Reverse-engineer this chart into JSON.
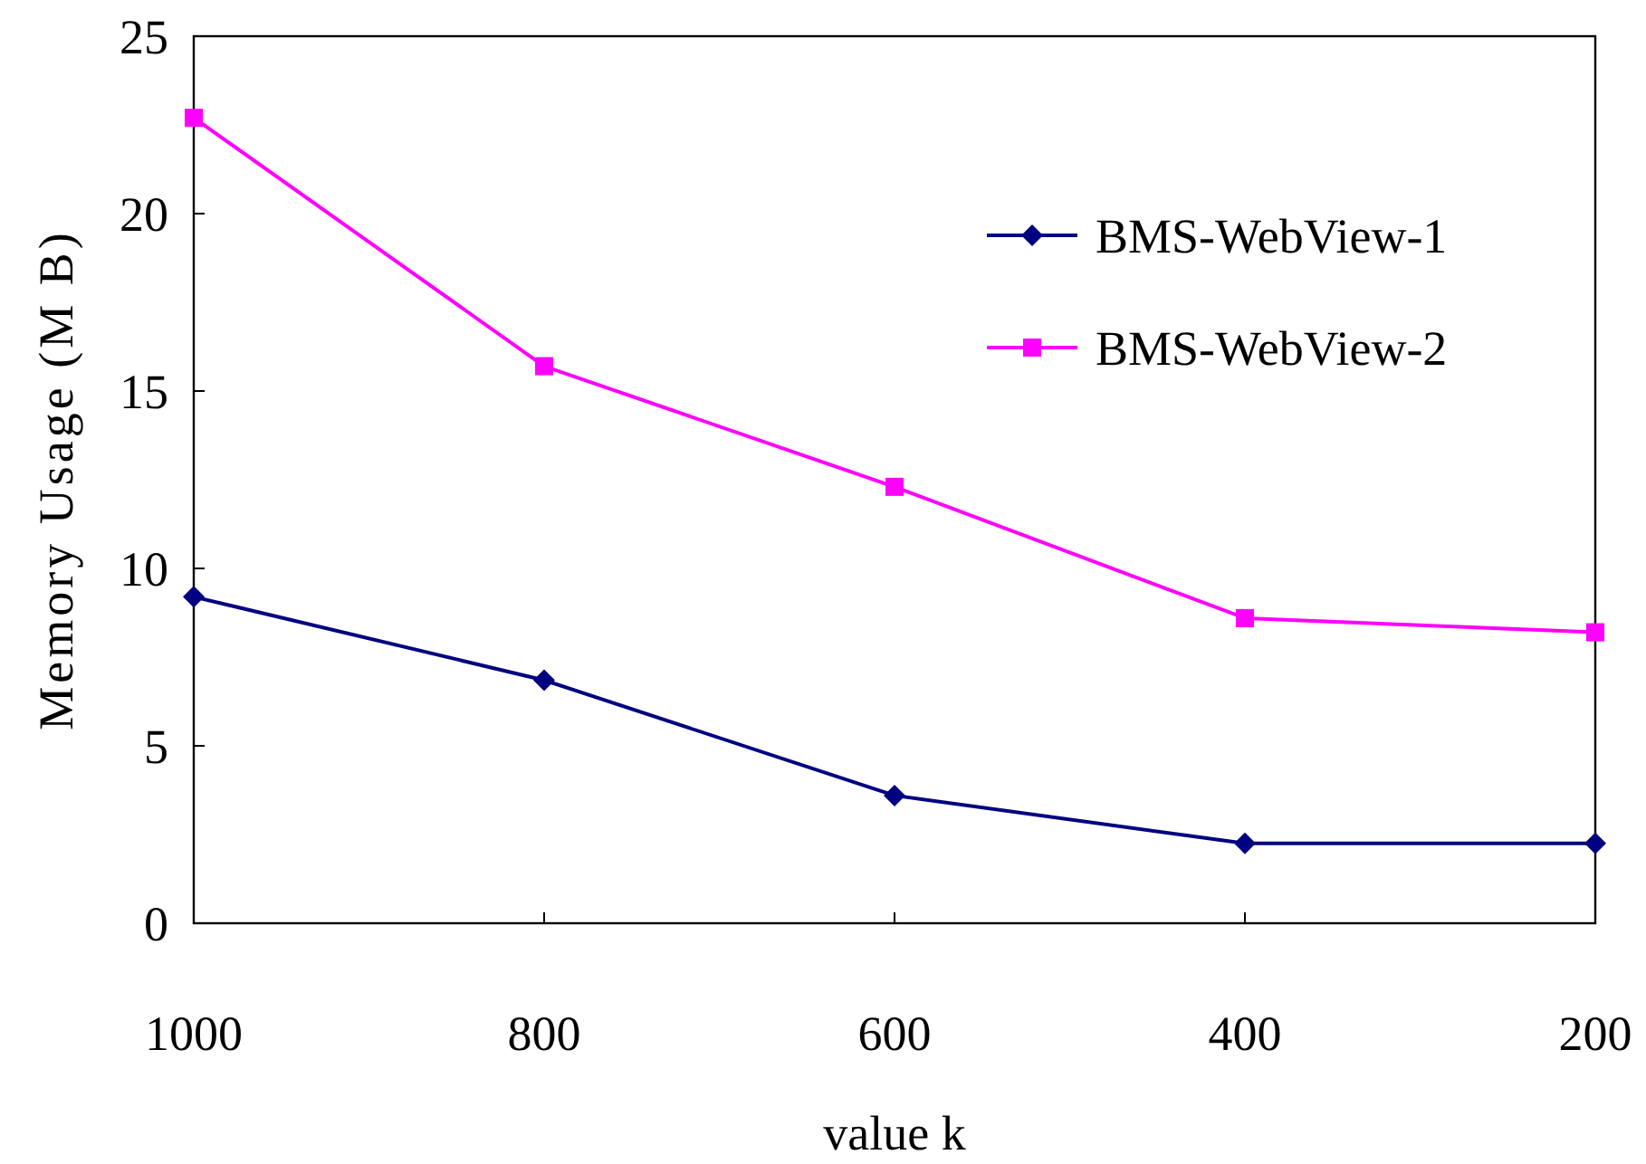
{
  "chart_data": {
    "type": "line",
    "xlabel": "value k",
    "ylabel": "Memory Usage (M B)",
    "x": [
      1000,
      800,
      600,
      400,
      200
    ],
    "xlim": [
      1000,
      200
    ],
    "xticks": [
      1000,
      800,
      600,
      400,
      200
    ],
    "ylim": [
      0,
      25
    ],
    "yticks": [
      0,
      5,
      10,
      15,
      20,
      25
    ],
    "grid": false,
    "legend": "top right",
    "line_style": "solid",
    "series": [
      {
        "name": "BMS-WebView-1",
        "color": "#000080",
        "marker": "diamond",
        "values": [
          9.2,
          6.85,
          3.6,
          2.25,
          2.25
        ]
      },
      {
        "name": "BMS-WebView-2",
        "color": "#ff00ff",
        "marker": "square",
        "values": [
          22.7,
          15.7,
          12.3,
          8.6,
          8.2
        ]
      }
    ]
  }
}
